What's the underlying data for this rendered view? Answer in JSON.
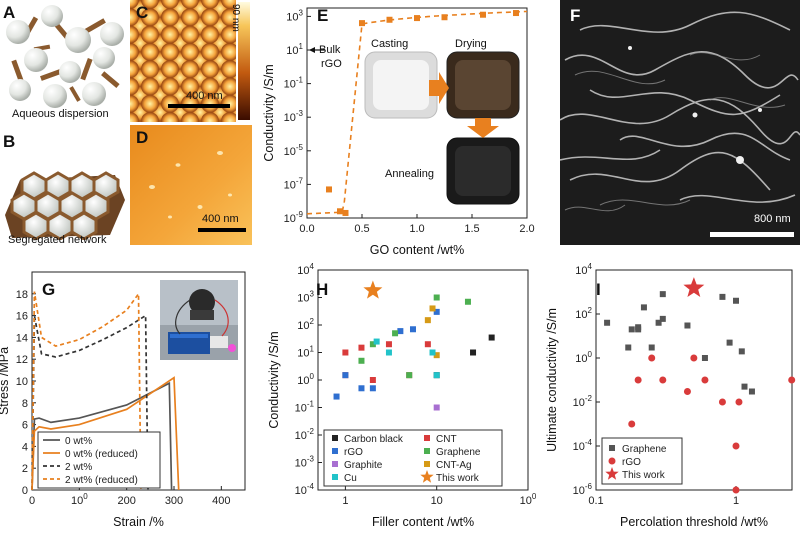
{
  "panels": {
    "A": {
      "label": "A",
      "caption": "Aqueous dispersion"
    },
    "B": {
      "label": "B",
      "caption": "Segregated network"
    },
    "C": {
      "label": "C",
      "scale_bar": "400 nm",
      "height_bar": "90 nm"
    },
    "D": {
      "label": "D",
      "scale_bar": "400 nm"
    },
    "E": {
      "label": "E",
      "bulk_label_1": "Bulk",
      "bulk_label_2": "rGO",
      "process_steps": [
        "Casting",
        "Drying",
        "Annealing"
      ]
    },
    "F": {
      "label": "F",
      "scale_bar": "800 nm"
    },
    "G": {
      "label": "G"
    },
    "H": {
      "label": "H"
    },
    "I": {
      "label": "I"
    }
  },
  "colors": {
    "orange": "#e8801f",
    "black": "#222222",
    "red": "#d93b3b",
    "blue": "#2f6fd0",
    "purple": "#a86fd1",
    "cyan": "#22c3c9",
    "green": "#4caf50",
    "gold": "#d69a16"
  },
  "chart_data": [
    {
      "id": "E",
      "type": "scatter",
      "xlabel": "GO content /wt%",
      "ylabel": "Conductivity /S/m",
      "xlim": [
        0,
        2.0
      ],
      "ylim_log10": [
        -9,
        3.5
      ],
      "xscale": "linear",
      "yscale": "log",
      "xticks": [
        "0.0",
        "0.5",
        "1.0",
        "1.5",
        "2.0"
      ],
      "yticks": [
        "10-9",
        "10-7",
        "10-5",
        "10-3",
        "10-1",
        "101",
        "103"
      ],
      "points_x": [
        0.2,
        0.3,
        0.35,
        0.5,
        0.75,
        1.0,
        1.25,
        1.6,
        1.9
      ],
      "points_log10y": [
        -7.3,
        -8.6,
        -8.7,
        2.6,
        2.8,
        2.9,
        2.95,
        3.1,
        3.2
      ],
      "fit_curve": "percolation dashed fit",
      "bulk_rgo_log10": 1.0
    },
    {
      "id": "G",
      "type": "line",
      "xlabel": "Strain /%",
      "ylabel": "Stress /MPa",
      "xlim": [
        0,
        450
      ],
      "ylim": [
        0,
        20
      ],
      "xticks": [
        "0",
        "100",
        "200",
        "300",
        "400"
      ],
      "yticks": [
        "0",
        "2",
        "4",
        "6",
        "8",
        "10",
        "12",
        "14",
        "16",
        "18"
      ],
      "legend": [
        "0 wt%",
        "0 wt% (reduced)",
        "2 wt%",
        "2 wt% (reduced)"
      ],
      "series": [
        {
          "name": "0 wt%",
          "strain": [
            0,
            5,
            15,
            40,
            100,
            200,
            290,
            295
          ],
          "stress": [
            0,
            6.5,
            6.6,
            6.2,
            6.6,
            7.8,
            9.8,
            0
          ]
        },
        {
          "name": "0 wt% (reduced)",
          "strain": [
            0,
            5,
            15,
            40,
            100,
            200,
            300,
            310
          ],
          "stress": [
            0,
            5.4,
            5.8,
            5.6,
            6.0,
            7.4,
            10.3,
            0
          ]
        },
        {
          "name": "2 wt%",
          "strain": [
            0,
            5,
            20,
            50,
            100,
            150,
            200,
            240,
            245
          ],
          "stress": [
            0,
            16.0,
            12.5,
            12.2,
            12.8,
            13.8,
            14.9,
            16.0,
            0
          ]
        },
        {
          "name": "2 wt% (reduced)",
          "strain": [
            0,
            5,
            20,
            50,
            100,
            150,
            200,
            225,
            230
          ],
          "stress": [
            0,
            18.2,
            14.0,
            13.2,
            13.8,
            15.0,
            16.5,
            18.0,
            0
          ]
        }
      ]
    },
    {
      "id": "H",
      "type": "scatter",
      "xlabel": "Filler content /wt%",
      "ylabel": "Conductivity /S/m",
      "xscale": "log",
      "yscale": "log",
      "xlim_log10": [
        -0.3,
        2
      ],
      "ylim_log10": [
        -4,
        4
      ],
      "xticks": [
        "1",
        "10",
        "100"
      ],
      "yticks": [
        "10-4",
        "10-3",
        "10-2",
        "10-1",
        "100",
        "101",
        "102",
        "103",
        "104"
      ],
      "legend": [
        "Carbon black",
        "CNT",
        "rGO",
        "Graphene",
        "Graphite",
        "CNT-Ag",
        "Cu",
        "This work"
      ],
      "series": [
        {
          "name": "Carbon black",
          "x": [
            10,
            25,
            40
          ],
          "y": [
            1.5,
            10,
            35
          ]
        },
        {
          "name": "CNT",
          "x": [
            1.0,
            1.0,
            1.5,
            2.0,
            3.0,
            5.0,
            8.0
          ],
          "y": [
            10,
            1.5,
            15,
            1.0,
            20,
            1.5,
            20
          ]
        },
        {
          "name": "rGO",
          "x": [
            0.8,
            1.0,
            1.5,
            2.0,
            4.0,
            5.5,
            10
          ],
          "y": [
            0.25,
            1.5,
            0.5,
            0.5,
            60,
            70,
            300
          ]
        },
        {
          "name": "Graphene",
          "x": [
            1.5,
            2.0,
            3.5,
            5.0,
            10,
            22
          ],
          "y": [
            5,
            20,
            50,
            1.5,
            1000,
            700
          ]
        },
        {
          "name": "Graphite",
          "x": [
            10
          ],
          "y": [
            0.1
          ]
        },
        {
          "name": "CNT-Ag",
          "x": [
            8,
            9,
            10
          ],
          "y": [
            150,
            400,
            8
          ]
        },
        {
          "name": "Cu",
          "x": [
            2.2,
            3.0,
            9,
            10
          ],
          "y": [
            25,
            10,
            10,
            1.5
          ]
        },
        {
          "name": "This work",
          "x": [
            2.0
          ],
          "y": [
            1800
          ]
        }
      ]
    },
    {
      "id": "I",
      "type": "scatter",
      "xlabel": "Percolation threshold /wt%",
      "ylabel": "Ultimate conductivity /S/m",
      "xscale": "log",
      "yscale": "log",
      "xlim_log10": [
        -1,
        0.4
      ],
      "ylim_log10": [
        -6,
        4
      ],
      "xticks": [
        "0.1",
        "1"
      ],
      "yticks": [
        "10-6",
        "10-4",
        "10-2",
        "100",
        "102",
        "104"
      ],
      "legend": [
        "Graphene",
        "rGO",
        "This work"
      ],
      "series": [
        {
          "name": "Graphene",
          "x": [
            0.12,
            0.17,
            0.18,
            0.2,
            0.2,
            0.22,
            0.25,
            0.28,
            0.3,
            0.3,
            0.45,
            0.6,
            0.8,
            0.9,
            1.0,
            1.1,
            1.15,
            1.3
          ],
          "y": [
            40,
            3,
            20,
            25,
            20,
            200,
            3,
            40,
            800,
            60,
            30,
            1,
            600,
            5,
            400,
            2,
            0.05,
            0.03
          ]
        },
        {
          "name": "rGO",
          "x": [
            0.18,
            0.2,
            0.25,
            0.3,
            0.45,
            0.5,
            0.6,
            0.8,
            1.0,
            1.0,
            1.05,
            2.5
          ],
          "y": [
            0.001,
            0.1,
            1,
            0.1,
            0.03,
            1,
            0.1,
            0.01,
            0.0001,
            1e-06,
            0.01,
            0.1
          ]
        },
        {
          "name": "This work",
          "x": [
            0.5
          ],
          "y": [
            1500
          ]
        }
      ]
    }
  ]
}
